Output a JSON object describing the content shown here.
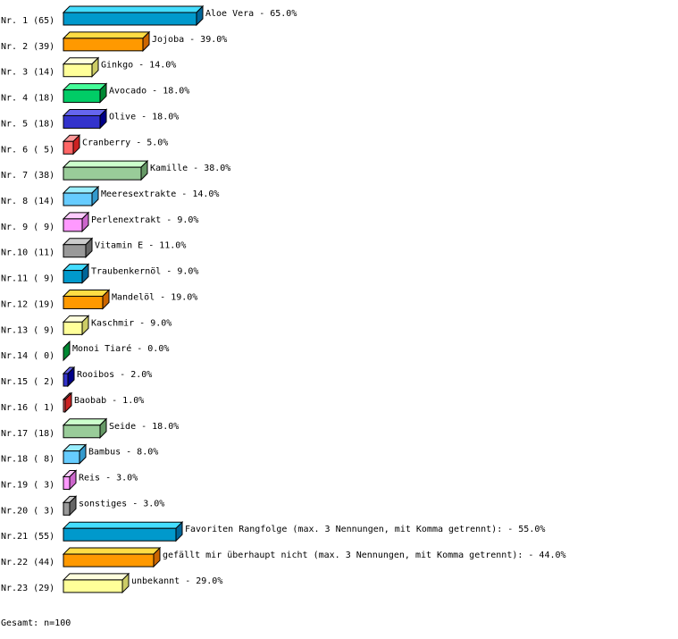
{
  "chart_data": {
    "type": "bar",
    "orientation": "horizontal",
    "style": "3d",
    "grid": false,
    "rows": [
      {
        "rank": "Nr. 1",
        "count": 65,
        "label": "Aloe Vera",
        "percent": 65.0
      },
      {
        "rank": "Nr. 2",
        "count": 39,
        "label": "Jojoba",
        "percent": 39.0
      },
      {
        "rank": "Nr. 3",
        "count": 14,
        "label": "Ginkgo",
        "percent": 14.0
      },
      {
        "rank": "Nr. 4",
        "count": 18,
        "label": "Avocado",
        "percent": 18.0
      },
      {
        "rank": "Nr. 5",
        "count": 18,
        "label": "Olive",
        "percent": 18.0
      },
      {
        "rank": "Nr. 6",
        "count": 5,
        "label": "Cranberry",
        "percent": 5.0
      },
      {
        "rank": "Nr. 7",
        "count": 38,
        "label": "Kamille",
        "percent": 38.0
      },
      {
        "rank": "Nr. 8",
        "count": 14,
        "label": "Meeresextrakte",
        "percent": 14.0
      },
      {
        "rank": "Nr. 9",
        "count": 9,
        "label": "Perlenextrakt",
        "percent": 9.0
      },
      {
        "rank": "Nr.10",
        "count": 11,
        "label": "Vitamin E",
        "percent": 11.0
      },
      {
        "rank": "Nr.11",
        "count": 9,
        "label": "Traubenkernöl",
        "percent": 9.0
      },
      {
        "rank": "Nr.12",
        "count": 19,
        "label": "Mandelöl",
        "percent": 19.0
      },
      {
        "rank": "Nr.13",
        "count": 9,
        "label": "Kaschmir",
        "percent": 9.0
      },
      {
        "rank": "Nr.14",
        "count": 0,
        "label": "Monoi Tiaré",
        "percent": 0.0
      },
      {
        "rank": "Nr.15",
        "count": 2,
        "label": "Rooibos",
        "percent": 2.0
      },
      {
        "rank": "Nr.16",
        "count": 1,
        "label": "Baobab",
        "percent": 1.0
      },
      {
        "rank": "Nr.17",
        "count": 18,
        "label": "Seide",
        "percent": 18.0
      },
      {
        "rank": "Nr.18",
        "count": 8,
        "label": "Bambus",
        "percent": 8.0
      },
      {
        "rank": "Nr.19",
        "count": 3,
        "label": "Reis",
        "percent": 3.0
      },
      {
        "rank": "Nr.20",
        "count": 3,
        "label": "sonstiges",
        "percent": 3.0
      },
      {
        "rank": "Nr.21",
        "count": 55,
        "label": "Favoriten Rangfolge (max. 3 Nennungen, mit Komma getrennt):",
        "percent": 55.0
      },
      {
        "rank": "Nr.22",
        "count": 44,
        "label": "gefällt mir überhaupt nicht (max. 3 Nennungen, mit Komma getrennt):",
        "percent": 44.0
      },
      {
        "rank": "Nr.23",
        "count": 29,
        "label": "unbekannt",
        "percent": 29.0
      }
    ],
    "colors": [
      {
        "front": "#0099cc",
        "top": "#44ddff",
        "side": "#006699"
      },
      {
        "front": "#ff9900",
        "top": "#ffdd44",
        "side": "#cc6600"
      },
      {
        "front": "#ffff99",
        "top": "#ffffdd",
        "side": "#cccc66"
      },
      {
        "front": "#00cc66",
        "top": "#44ff99",
        "side": "#008833"
      },
      {
        "front": "#3333cc",
        "top": "#6666ee",
        "side": "#000088"
      },
      {
        "front": "#ff6666",
        "top": "#ff9999",
        "side": "#cc2222"
      },
      {
        "front": "#99cc99",
        "top": "#ccffcc",
        "side": "#669966"
      },
      {
        "front": "#66ccff",
        "top": "#99eeff",
        "side": "#3399cc"
      },
      {
        "front": "#ff99ff",
        "top": "#ffccff",
        "side": "#cc66cc"
      },
      {
        "front": "#999999",
        "top": "#cccccc",
        "side": "#666666"
      }
    ]
  },
  "footer": {
    "total": "Gesamt: n=100"
  }
}
